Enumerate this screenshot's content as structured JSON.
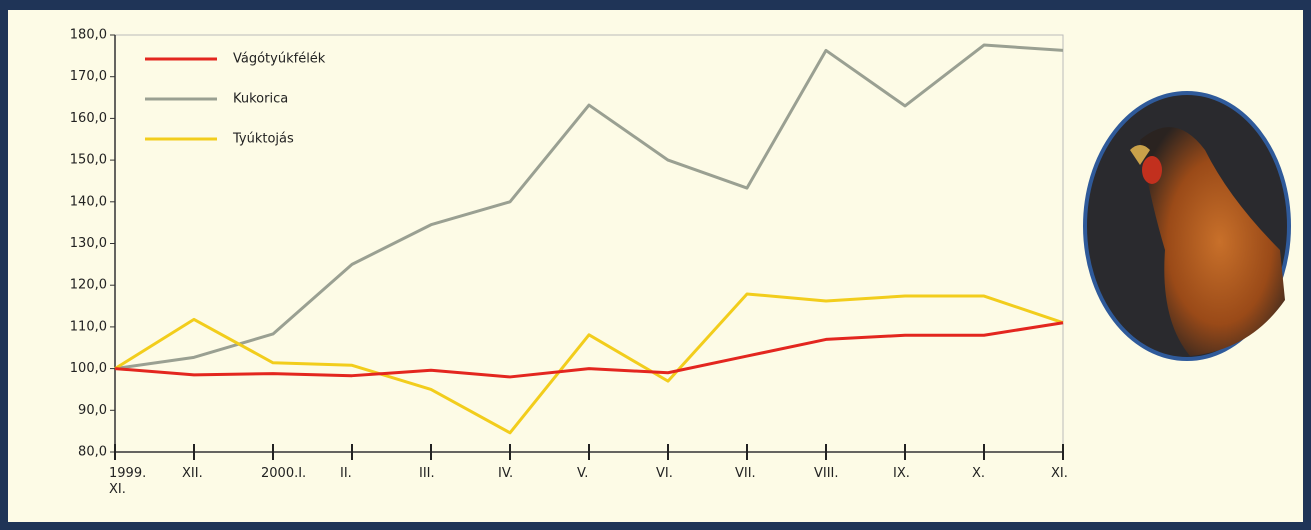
{
  "chart_data": {
    "type": "line",
    "categories": [
      "1999.\nXI.",
      "XII.",
      "2000.I.",
      "II.",
      "III.",
      "IV.",
      "V.",
      "VI.",
      "VII.",
      "VIII.",
      "IX.",
      "X.",
      "XI."
    ],
    "series": [
      {
        "name": "Vágótyúkfélék",
        "color": "#e3261f",
        "values": [
          100,
          98.5,
          98.8,
          98.3,
          99.6,
          98,
          100,
          99,
          103,
          107,
          108,
          108,
          111
        ]
      },
      {
        "name": "Kukorica",
        "color": "#9aa092",
        "values": [
          100,
          102.7,
          108.3,
          125,
          134.5,
          140,
          163.2,
          150,
          143.3,
          176.3,
          163,
          177.6,
          176.3
        ]
      },
      {
        "name": "Tyúktojás",
        "color": "#f2cd1c",
        "values": [
          100,
          111.8,
          101.4,
          100.8,
          95,
          84.6,
          108.1,
          97,
          117.9,
          116.2,
          117.4,
          117.4,
          111
        ]
      }
    ],
    "ylim": [
      80,
      180
    ],
    "yticks": [
      {
        "value": 80,
        "label": "80,0"
      },
      {
        "value": 90,
        "label": "90,0"
      },
      {
        "value": 100,
        "label": "100,0"
      },
      {
        "value": 110,
        "label": "110,0"
      },
      {
        "value": 120,
        "label": "120,0"
      },
      {
        "value": 130,
        "label": "130,0"
      },
      {
        "value": 140,
        "label": "140,0"
      },
      {
        "value": 150,
        "label": "150,0"
      },
      {
        "value": 160,
        "label": "160,0"
      },
      {
        "value": 170,
        "label": "170,0"
      },
      {
        "value": 180,
        "label": "180,0"
      }
    ],
    "grid": false,
    "legend": "upper left"
  }
}
